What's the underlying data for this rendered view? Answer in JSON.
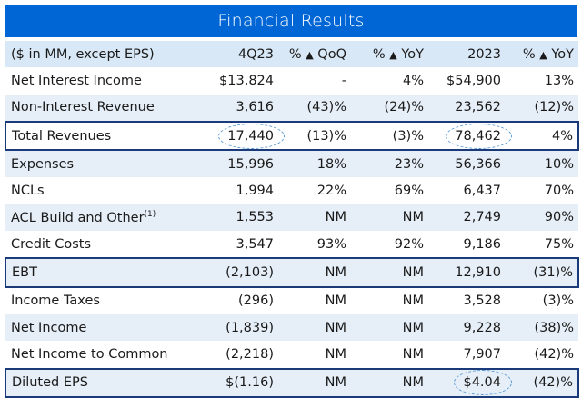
{
  "title": "Financial Results",
  "header": {
    "label": "($ in MM, except EPS)",
    "col1": "4Q23",
    "col2_pct": "% ",
    "col2_delta": "▲",
    "col2_rest": " QoQ",
    "col3_pct": "% ",
    "col3_delta": "▲",
    "col3_rest": " YoY",
    "col4": "2023",
    "col5_pct": "% ",
    "col5_delta": "▲",
    "col5_rest": " YoY"
  },
  "rows": [
    {
      "label": "Net Interest Income",
      "q": "$13,824",
      "qoq": "-",
      "yoy": "4%",
      "fy": "$54,900",
      "fyoy": "13%"
    },
    {
      "label": "Non-Interest Revenue",
      "q": "3,616",
      "qoq": "(43)%",
      "yoy": "(24)%",
      "fy": "23,562",
      "fyoy": "(12)%"
    },
    {
      "label": "Total Revenues",
      "q": "17,440",
      "qoq": "(13)%",
      "yoy": "(3)%",
      "fy": "78,462",
      "fyoy": "4%"
    },
    {
      "label": "Expenses",
      "q": "15,996",
      "qoq": "18%",
      "yoy": "23%",
      "fy": "56,366",
      "fyoy": "10%"
    },
    {
      "label": "NCLs",
      "q": "1,994",
      "qoq": "22%",
      "yoy": "69%",
      "fy": "6,437",
      "fyoy": "70%"
    },
    {
      "label": "ACL Build and Other",
      "sup": "(1)",
      "q": "1,553",
      "qoq": "NM",
      "yoy": "NM",
      "fy": "2,749",
      "fyoy": "90%"
    },
    {
      "label": "Credit Costs",
      "q": "3,547",
      "qoq": "93%",
      "yoy": "92%",
      "fy": "9,186",
      "fyoy": "75%"
    },
    {
      "label": "EBT",
      "q": "(2,103)",
      "qoq": "NM",
      "yoy": "NM",
      "fy": "12,910",
      "fyoy": "(31)%"
    },
    {
      "label": "Income Taxes",
      "q": "(296)",
      "qoq": "NM",
      "yoy": "NM",
      "fy": "3,528",
      "fyoy": "(3)%"
    },
    {
      "label": "Net Income",
      "q": "(1,839)",
      "qoq": "NM",
      "yoy": "NM",
      "fy": "9,228",
      "fyoy": "(38)%"
    },
    {
      "label": "Net Income to Common",
      "q": "(2,218)",
      "qoq": "NM",
      "yoy": "NM",
      "fy": "7,907",
      "fyoy": "(42)%"
    },
    {
      "label": "Diluted EPS",
      "q": "$(1.16)",
      "qoq": "NM",
      "yoy": "NM",
      "fy": "$4.04",
      "fyoy": "(42)%"
    }
  ],
  "colors": {
    "title_bg": "#0066d6",
    "header_bg": "#d9e8f7",
    "shade": "#e6eef7",
    "box_border": "#1a3a7a",
    "highlight": "#5b9bd5"
  }
}
